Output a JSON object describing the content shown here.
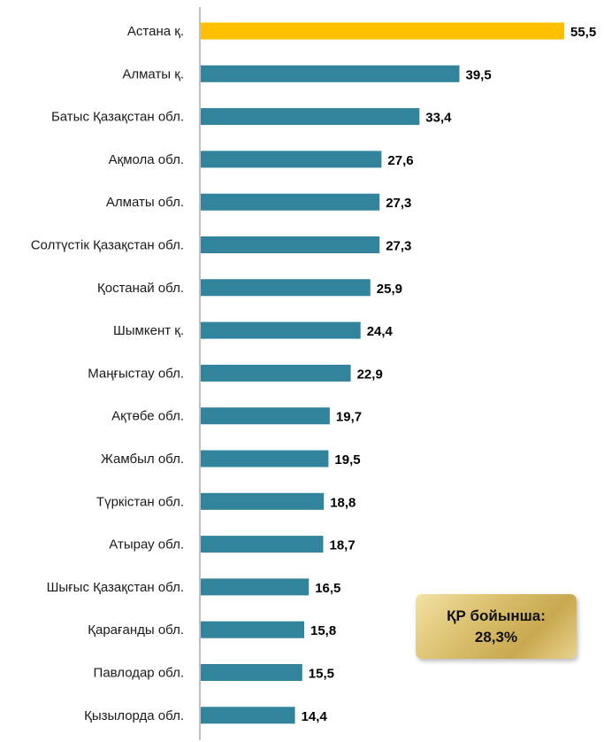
{
  "chart_data": {
    "type": "bar",
    "orientation": "horizontal",
    "categories": [
      "Астана қ.",
      "Алматы қ.",
      "Батыс Қазақстан обл.",
      "Ақмола обл.",
      "Алматы обл.",
      "Солтүстік Қазақстан обл.",
      "Қостанай обл.",
      "Шымкент қ.",
      "Маңғыстау обл.",
      "Ақтөбе обл.",
      "Жамбыл обл.",
      "Түркістан обл.",
      "Атырау обл.",
      "Шығыс Қазақстан обл.",
      "Қарағанды обл.",
      "Павлодар обл.",
      "Қызылорда обл."
    ],
    "values": [
      55.5,
      39.5,
      33.4,
      27.6,
      27.3,
      27.3,
      25.9,
      24.4,
      22.9,
      19.7,
      19.5,
      18.8,
      18.7,
      16.5,
      15.8,
      15.5,
      14.4
    ],
    "value_labels": [
      "55,5",
      "39,5",
      "33,4",
      "27,6",
      "27,3",
      "27,3",
      "25,9",
      "24,4",
      "22,9",
      "19,7",
      "19,5",
      "18,8",
      "18,7",
      "16,5",
      "15,8",
      "15,5",
      "14,4"
    ],
    "highlight_index": 0,
    "colors": {
      "bar": "#31849b",
      "highlight": "#ffc000",
      "axis": "#808080"
    },
    "xlim": [
      0,
      55.5
    ],
    "grid": false,
    "legend": "none"
  },
  "badge": {
    "line1": "ҚР бойынша:",
    "line2": "28,3%"
  }
}
